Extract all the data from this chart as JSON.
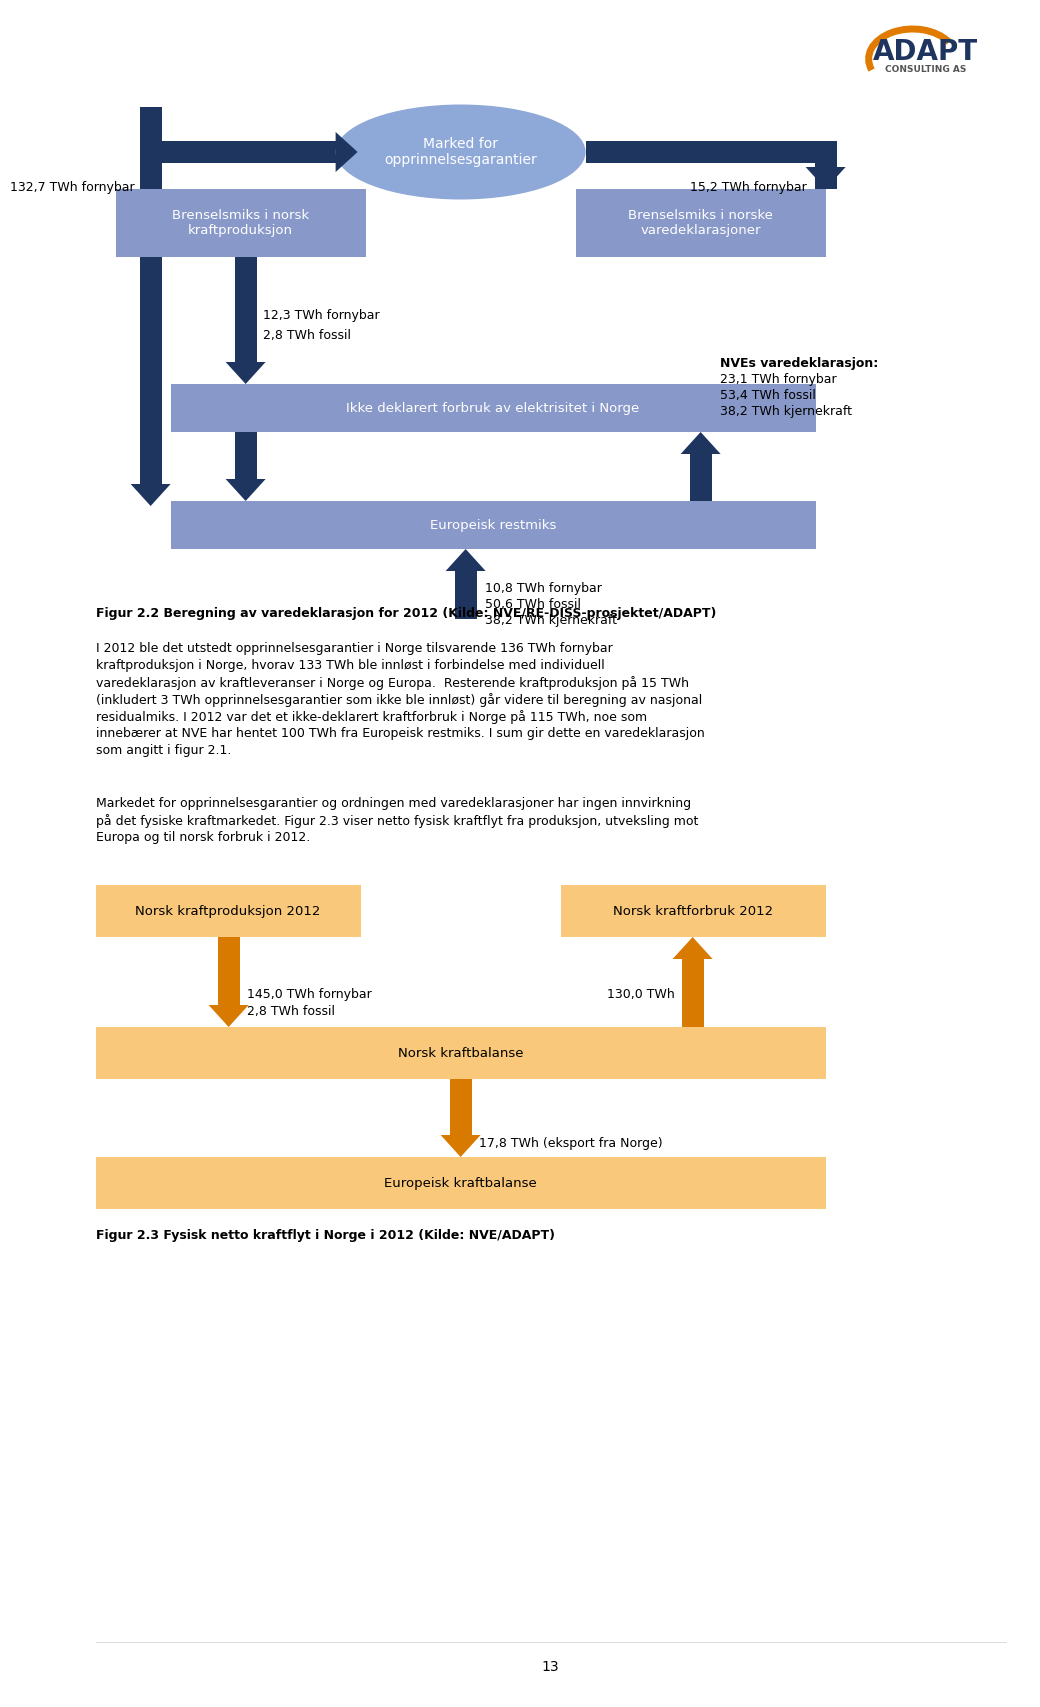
{
  "page_bg": "#ffffff",
  "fig1_title": "Figur 2.2 Beregning av varedeklarasjon for 2012 (Kilde: NVE/RE-DISS-prosjektet/ADAPT)",
  "box_color_blue": "#8096c8",
  "arrow_color_blue": "#1e3a6e",
  "arrow_color_orange": "#e07b00",
  "ellipse_text": "Marked for\nopprinnelsesgarantier",
  "box1_text": "Brenselsmiks i norsk\nkraftproduksjon",
  "box2_text": "Brenselsmiks i norske\nvaredeklarasjoner",
  "box3_text": "Ikke deklarert forbruk av elektrisitet i Norge",
  "box4_text": "Europeisk restmiks",
  "label_132": "132,7 TWh fornybar",
  "label_15": "15,2 TWh fornybar",
  "label_12_3": "12,3 TWh fornybar",
  "label_2_8": "2,8 TWh fossil",
  "label_nve_bold": "NVEs varedeklarasjon:",
  "label_nve_1": "23,1 TWh fornybar",
  "label_nve_2": "53,4 TWh fossil",
  "label_nve_3": "38,2 TWh kjernekraft",
  "label_10_8": "10,8 TWh fornybar",
  "label_50_6": "50,6 TWh fossil",
  "label_38_2": "38,2 TWh kjernekraft",
  "para1_lines": [
    "I 2012 ble det utstedt opprinnelsesgarantier i Norge tilsvarende 136 TWh fornybar",
    "kraftproduksjon i Norge, hvorav 133 TWh ble innløst i forbindelse med individuell",
    "varedeklarasjon av kraftleveranser i Norge og Europa.  Resterende kraftproduksjon på 15 TWh",
    "(inkludert 3 TWh opprinnelsesgarantier som ikke ble innløst) går videre til beregning av nasjonal",
    "residualmiks. I 2012 var det et ikke-deklarert kraftforbruk i Norge på 115 TWh, noe som",
    "innebærer at NVE har hentet 100 TWh fra Europeisk restmiks. I sum gir dette en varedeklarasjon",
    "som angitt i figur 2.1."
  ],
  "para2_lines": [
    "Markedet for opprinnelsesgarantier og ordningen med varedeklarasjoner har ingen innvirkning",
    "på det fysiske kraftmarkedet. Figur 2.3 viser netto fysisk kraftflyt fra produksjon, utveksling mot",
    "Europa og til norsk forbruk i 2012."
  ],
  "fig2_box1_text": "Norsk kraftproduksjon 2012",
  "fig2_box2_text": "Norsk kraftforbruk 2012",
  "fig2_box3_text": "Norsk kraftbalanse",
  "fig2_box4_text": "Europeisk kraftbalanse",
  "fig2_label1a": "145,0 TWh fornybar",
  "fig2_label1b": "2,8 TWh fossil",
  "fig2_label2": "130,0 TWh",
  "fig2_label3": "17,8 TWh (eksport fra Norge)",
  "fig2_title": "Figur 2.3 Fysisk netto kraftflyt i Norge i 2012 (Kilde: NVE/ADAPT)",
  "page_number": "13",
  "blue_box_color": "#8898c8",
  "blue_arrow_color": "#1e3560",
  "orange_box_color": "#f9c87a",
  "orange_arrow_color": "#d97a00"
}
